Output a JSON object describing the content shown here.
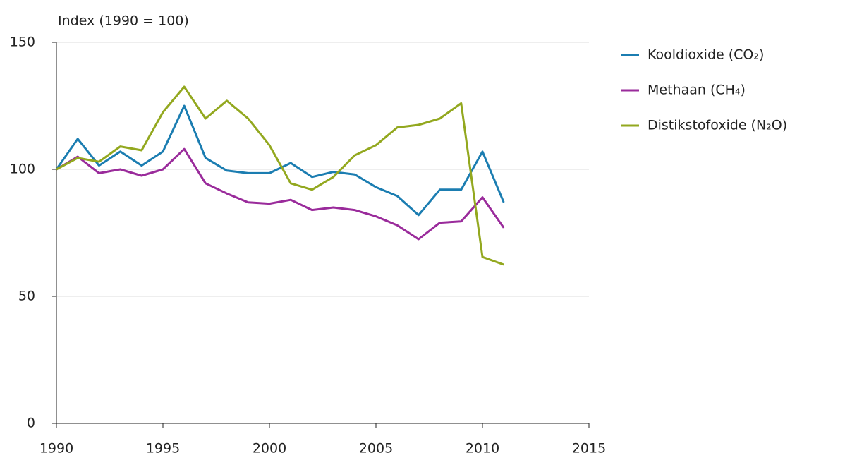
{
  "chart_data": {
    "type": "line",
    "y_label": "Index (1990 = 100)",
    "x": [
      1990,
      1991,
      1992,
      1993,
      1994,
      1995,
      1996,
      1997,
      1998,
      1999,
      2000,
      2001,
      2002,
      2003,
      2004,
      2005,
      2006,
      2007,
      2008,
      2009,
      2010,
      2011
    ],
    "series": [
      {
        "name": "Kooldioxide (CO₂)",
        "color": "#1b7db1",
        "values": [
          100,
          112,
          101.5,
          107,
          101.5,
          107,
          125,
          104.5,
          99.5,
          98.5,
          98.5,
          102.5,
          97,
          99,
          98,
          93,
          89.5,
          82,
          92,
          92,
          107,
          87
        ]
      },
      {
        "name": "Methaan (CH₄)",
        "color": "#9a2b9b",
        "values": [
          100,
          105,
          98.5,
          100,
          97.5,
          100,
          108,
          94.5,
          90.5,
          87,
          86.5,
          88,
          84,
          85,
          84,
          81.5,
          78,
          72.5,
          79,
          79.5,
          89,
          77
        ]
      },
      {
        "name": "Distikstofoxide (N₂O)",
        "color": "#93a81f",
        "values": [
          100,
          104.5,
          103,
          109,
          107.5,
          122.5,
          132.5,
          120,
          127,
          120,
          109.5,
          94.5,
          92,
          97,
          105.5,
          109.5,
          116.5,
          117.5,
          120,
          126,
          65.5,
          62.5
        ]
      }
    ],
    "xlim": [
      1990,
      2015
    ],
    "xticks": [
      1990,
      1995,
      2000,
      2005,
      2010,
      2015
    ],
    "ylim": [
      0,
      150
    ],
    "yticks": [
      0,
      50,
      100,
      150
    ],
    "grid": true,
    "legend": "right"
  }
}
